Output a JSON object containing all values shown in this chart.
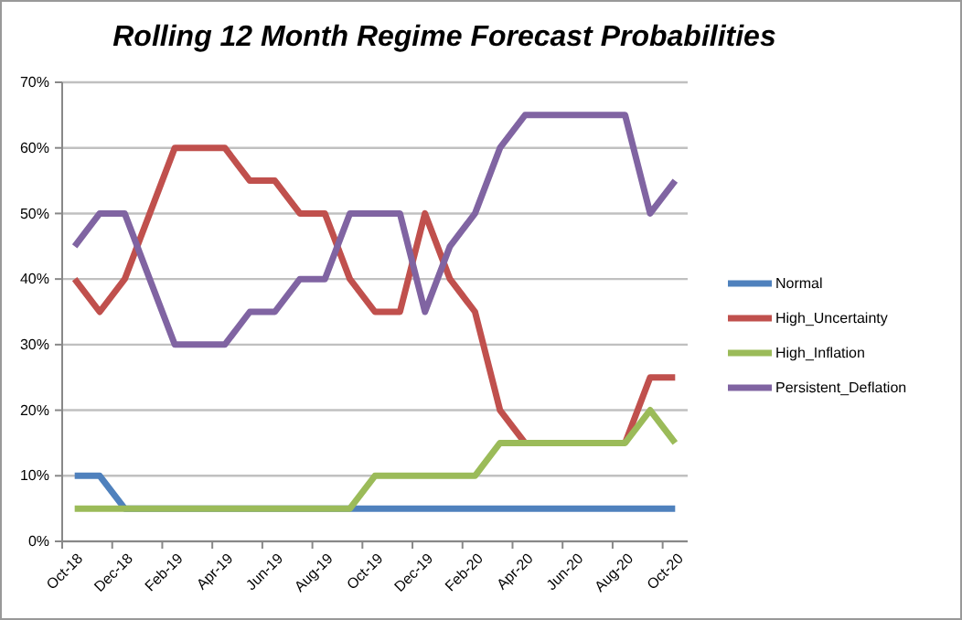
{
  "chart_data": {
    "type": "line",
    "title": "Rolling 12 Month Regime Forecast Probabilities",
    "categories": [
      "Oct-18",
      null,
      "Dec-18",
      null,
      "Feb-19",
      null,
      "Apr-19",
      null,
      "Jun-19",
      null,
      "Aug-19",
      null,
      "Oct-19",
      null,
      "Dec-19",
      null,
      "Feb-20",
      null,
      "Apr-20",
      null,
      "Jun-20",
      null,
      "Aug-20",
      null,
      "Oct-20"
    ],
    "series": [
      {
        "name": "Normal",
        "color": "#4f81bd",
        "values": [
          10,
          10,
          5,
          5,
          5,
          5,
          5,
          5,
          5,
          5,
          5,
          5,
          5,
          5,
          5,
          5,
          5,
          5,
          5,
          5,
          5,
          5,
          5,
          5,
          5
        ]
      },
      {
        "name": "High_Uncertainty",
        "color": "#c0504d",
        "values": [
          40,
          35,
          40,
          50,
          60,
          60,
          60,
          55,
          55,
          50,
          50,
          40,
          35,
          35,
          50,
          40,
          35,
          20,
          15,
          null,
          null,
          null,
          15,
          25,
          25
        ]
      },
      {
        "name": "High_Inflation",
        "color": "#9bbb59",
        "values": [
          5,
          5,
          5,
          5,
          5,
          5,
          5,
          5,
          5,
          5,
          5,
          5,
          10,
          10,
          10,
          10,
          10,
          15,
          15,
          15,
          15,
          15,
          15,
          20,
          15
        ]
      },
      {
        "name": "Persistent_Deflation",
        "color": "#8064a2",
        "values": [
          45,
          50,
          50,
          40,
          30,
          30,
          30,
          35,
          35,
          40,
          40,
          50,
          50,
          50,
          35,
          45,
          50,
          60,
          65,
          65,
          65,
          65,
          65,
          50,
          55
        ]
      }
    ],
    "ylim": [
      0,
      70
    ],
    "yticks": [
      {
        "value": 0,
        "label": "0%"
      },
      {
        "value": 10,
        "label": "10%"
      },
      {
        "value": 20,
        "label": "20%"
      },
      {
        "value": 30,
        "label": "30%"
      },
      {
        "value": 40,
        "label": "40%"
      },
      {
        "value": 50,
        "label": "50%"
      },
      {
        "value": 60,
        "label": "60%"
      },
      {
        "value": 70,
        "label": "70%"
      }
    ],
    "grid": "y",
    "legend": "right",
    "marker": "none",
    "line_style": "solid"
  }
}
